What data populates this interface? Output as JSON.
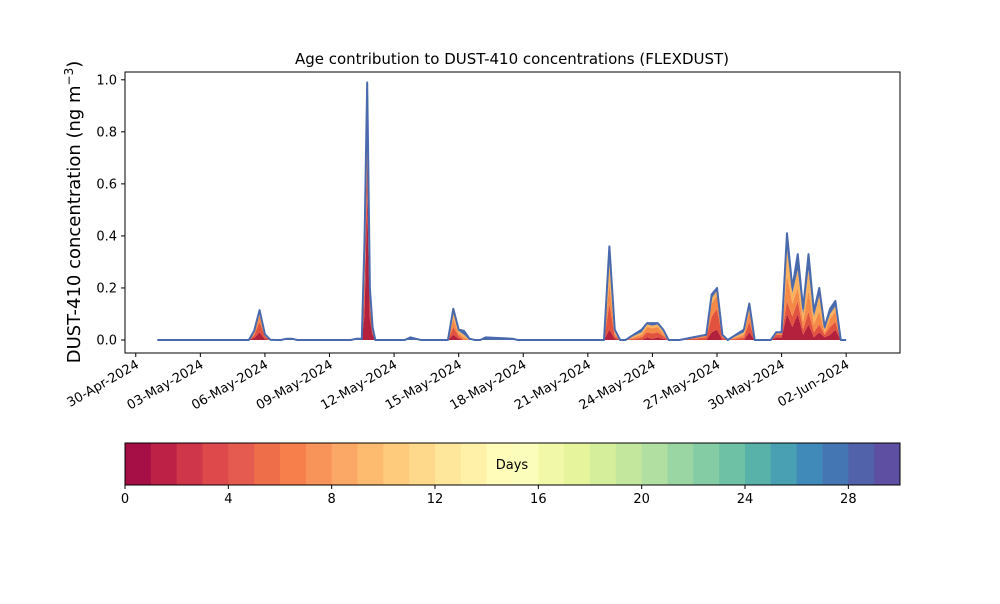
{
  "chart_data": {
    "type": "area",
    "title": "Age contribution to DUST-410 concentrations (FLEXDUST)",
    "ylabel_main": "DUST-410 concentration (ng m",
    "ylabel_sup": "−3",
    "ylabel_close": ")",
    "xlabel": "",
    "xlim": [
      "2024-04-29T12:00",
      "2024-06-04T12:00"
    ],
    "ylim": [
      -0.05,
      1.03
    ],
    "yticks": [
      0.0,
      0.2,
      0.4,
      0.6,
      0.8,
      1.0
    ],
    "ytick_labels": [
      "0.0",
      "0.2",
      "0.4",
      "0.6",
      "0.8",
      "1.0"
    ],
    "xticks": [
      "2024-04-30",
      "2024-05-03",
      "2024-05-06",
      "2024-05-09",
      "2024-05-12",
      "2024-05-15",
      "2024-05-18",
      "2024-05-21",
      "2024-05-24",
      "2024-05-27",
      "2024-05-30",
      "2024-06-02"
    ],
    "xtick_labels": [
      "30-Apr-2024",
      "03-May-2024",
      "06-May-2024",
      "09-May-2024",
      "12-May-2024",
      "15-May-2024",
      "18-May-2024",
      "21-May-2024",
      "24-May-2024",
      "27-May-2024",
      "30-May-2024",
      "02-Jun-2024"
    ],
    "x": [
      "2024-05-01T00:00",
      "2024-05-05T06:00",
      "2024-05-05T12:00",
      "2024-05-05T18:00",
      "2024-05-06T00:00",
      "2024-05-06T06:00",
      "2024-05-06T12:00",
      "2024-05-06T18:00",
      "2024-05-07T00:00",
      "2024-05-07T06:00",
      "2024-05-07T12:00",
      "2024-05-10T00:00",
      "2024-05-10T06:00",
      "2024-05-10T12:00",
      "2024-05-10T15:00",
      "2024-05-10T18:00",
      "2024-05-10T21:00",
      "2024-05-11T00:00",
      "2024-05-11T03:00",
      "2024-05-11T06:00",
      "2024-05-11T12:00",
      "2024-05-12T12:00",
      "2024-05-12T18:00",
      "2024-05-13T00:00",
      "2024-05-13T06:00",
      "2024-05-14T12:00",
      "2024-05-14T18:00",
      "2024-05-15T00:00",
      "2024-05-15T06:00",
      "2024-05-15T12:00",
      "2024-05-15T18:00",
      "2024-05-16T00:00",
      "2024-05-16T06:00",
      "2024-05-17T12:00",
      "2024-05-17T18:00",
      "2024-05-18T00:00",
      "2024-05-21T18:00",
      "2024-05-22T00:00",
      "2024-05-22T06:00",
      "2024-05-22T12:00",
      "2024-05-22T18:00",
      "2024-05-23T12:00",
      "2024-05-23T18:00",
      "2024-05-24T00:00",
      "2024-05-24T06:00",
      "2024-05-24T12:00",
      "2024-05-24T18:00",
      "2024-05-25T00:00",
      "2024-05-25T06:00",
      "2024-05-26T12:00",
      "2024-05-26T18:00",
      "2024-05-27T00:00",
      "2024-05-27T06:00",
      "2024-05-27T12:00",
      "2024-05-28T06:00",
      "2024-05-28T12:00",
      "2024-05-28T18:00",
      "2024-05-29T00:00",
      "2024-05-29T12:00",
      "2024-05-29T18:00",
      "2024-05-30T00:00",
      "2024-05-30T06:00",
      "2024-05-30T12:00",
      "2024-05-30T18:00",
      "2024-05-31T00:00",
      "2024-05-31T06:00",
      "2024-05-31T12:00",
      "2024-05-31T18:00",
      "2024-06-01T00:00",
      "2024-06-01T06:00",
      "2024-06-01T12:00",
      "2024-06-01T18:00",
      "2024-06-02T00:00"
    ],
    "series": [
      {
        "values": [
          0,
          0,
          0.008,
          0.03,
          0.004,
          0,
          0,
          0,
          0,
          0,
          0,
          0,
          0,
          0,
          0.1,
          0.55,
          0.08,
          0.02,
          0,
          0,
          0,
          0,
          0,
          0,
          0,
          0,
          0.02,
          0.005,
          0,
          0,
          0,
          0,
          0,
          0,
          0,
          0,
          0,
          0.04,
          0.005,
          0,
          0,
          0,
          0.01,
          0.005,
          0.01,
          0.005,
          0,
          0,
          0,
          0,
          0.03,
          0.04,
          0,
          0,
          0,
          0.03,
          0,
          0,
          0,
          0.01,
          0.01,
          0.1,
          0.05,
          0.1,
          0.02,
          0.06,
          0.01,
          0.03,
          0.01,
          0.02,
          0.04,
          0,
          0
        ]
      },
      {
        "values": [
          0,
          0,
          0.01,
          0.04,
          0.01,
          0,
          0,
          0,
          0,
          0,
          0,
          0,
          0,
          0,
          0.1,
          0.15,
          0.05,
          0.01,
          0,
          0,
          0,
          0,
          0,
          0,
          0,
          0,
          0.03,
          0.01,
          0,
          0,
          0,
          0,
          0,
          0,
          0,
          0,
          0,
          0.1,
          0.01,
          0,
          0,
          0.01,
          0.02,
          0.02,
          0.02,
          0.01,
          0,
          0,
          0,
          0.01,
          0.06,
          0.08,
          0.01,
          0,
          0.01,
          0.04,
          0,
          0,
          0,
          0.01,
          0.01,
          0.05,
          0.04,
          0.05,
          0.02,
          0.05,
          0.02,
          0.03,
          0.01,
          0.03,
          0.03,
          0,
          0
        ]
      },
      {
        "values": [
          0,
          0,
          0.007,
          0.025,
          0.004,
          0,
          0,
          0,
          0,
          0,
          0,
          0,
          0,
          0,
          0.1,
          0.12,
          0.03,
          0.01,
          0,
          0,
          0,
          0,
          0,
          0,
          0,
          0,
          0.03,
          0.01,
          0.01,
          0,
          0,
          0,
          0,
          0,
          0,
          0,
          0,
          0.08,
          0.01,
          0,
          0,
          0.01,
          0.02,
          0.02,
          0.02,
          0.01,
          0,
          0,
          0,
          0.01,
          0.05,
          0.05,
          0.01,
          0,
          0.01,
          0.04,
          0,
          0,
          0,
          0.01,
          0.01,
          0.1,
          0.05,
          0.05,
          0.03,
          0.08,
          0.03,
          0.05,
          0.01,
          0.03,
          0.04,
          0,
          0
        ]
      },
      {
        "values": [
          0,
          0,
          0.005,
          0.015,
          0.002,
          0,
          0,
          0,
          0,
          0,
          0,
          0,
          0,
          0,
          0.05,
          0.1,
          0.02,
          0.005,
          0,
          0,
          0,
          0,
          0,
          0,
          0,
          0,
          0.03,
          0.01,
          0.01,
          0,
          0,
          0,
          0,
          0,
          0,
          0,
          0,
          0.08,
          0.01,
          0,
          0,
          0.01,
          0.01,
          0.01,
          0.01,
          0.01,
          0,
          0,
          0,
          0,
          0.02,
          0.02,
          0,
          0,
          0.01,
          0.02,
          0,
          0,
          0,
          0,
          0,
          0.1,
          0.04,
          0.07,
          0.03,
          0.08,
          0.03,
          0.06,
          0.01,
          0.02,
          0.02,
          0,
          0
        ]
      },
      {
        "values": [
          0,
          0,
          0.005,
          0.005,
          0.002,
          0.001,
          0,
          0,
          0.005,
          0.005,
          0,
          0,
          0.005,
          0.005,
          0.03,
          0.07,
          0.02,
          0.005,
          0,
          0,
          0,
          0,
          0.01,
          0.005,
          0,
          0,
          0.01,
          0.005,
          0.015,
          0.005,
          0,
          0,
          0.01,
          0.005,
          0,
          0,
          0,
          0.06,
          0.005,
          0,
          0,
          0.01,
          0.005,
          0.01,
          0.005,
          0.005,
          0,
          0,
          0,
          0,
          0.015,
          0.01,
          0,
          0,
          0.01,
          0.01,
          0,
          0,
          0,
          0,
          0,
          0.06,
          0.02,
          0.06,
          0.02,
          0.06,
          0.02,
          0.03,
          0.01,
          0.02,
          0.02,
          0,
          0
        ]
      }
    ],
    "colorbar": {
      "label": "Days",
      "ticks": [
        0,
        4,
        8,
        12,
        16,
        20,
        24,
        28
      ],
      "tick_labels": [
        "0",
        "4",
        "8",
        "12",
        "16",
        "20",
        "24",
        "28"
      ],
      "range": [
        0,
        30
      ],
      "colors": [
        "#a50f45",
        "#bd2246",
        "#d0364a",
        "#de4a4c",
        "#e65b4f",
        "#ef6e4a",
        "#f67f4b",
        "#f8935a",
        "#fba867",
        "#fdbb6f",
        "#fecb7c",
        "#fed98c",
        "#fee69a",
        "#fff1a8",
        "#fffbb8",
        "#fbfdbb",
        "#f1f9a9",
        "#e6f49c",
        "#d5ee9b",
        "#c4e79e",
        "#b1dfa2",
        "#9ad6a4",
        "#83cca4",
        "#6ec1a5",
        "#58b2aa",
        "#48a0b2",
        "#3f8ab9",
        "#4576b4",
        "#5262aa",
        "#5e4fa2"
      ]
    },
    "series_colors": [
      "#b4213d",
      "#e2533f",
      "#f58a48",
      "#fbb15e",
      "#4a6aae"
    ],
    "grid": false,
    "legend": "colorbar-bottom"
  }
}
